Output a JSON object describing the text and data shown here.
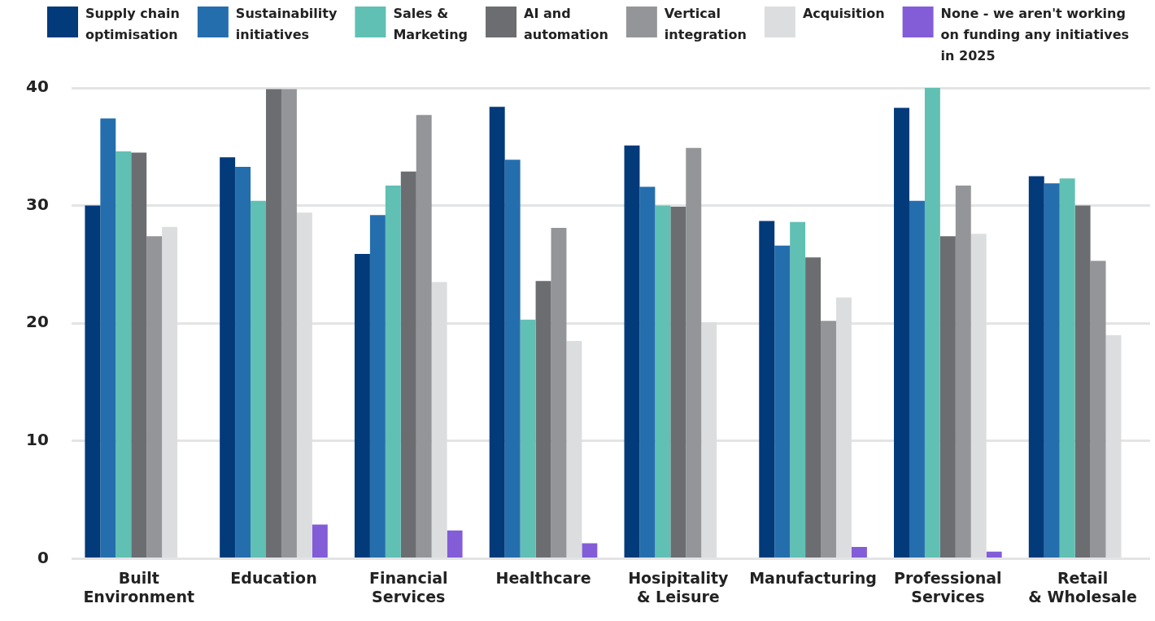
{
  "chart_data": {
    "type": "bar",
    "categories": [
      "Built Environment",
      "Education",
      "Financial Services",
      "Healthcare",
      "Hosipitality & Leisure",
      "Manufacturing",
      "Professional Services",
      "Retail & Wholesale"
    ],
    "series": [
      {
        "name": "Supply chain optimisation",
        "color": "#023a7a",
        "values": [
          30.0,
          34.1,
          25.9,
          38.4,
          35.1,
          28.7,
          38.3,
          32.5
        ]
      },
      {
        "name": "Sustainability initiatives",
        "color": "#256eae",
        "values": [
          37.4,
          33.3,
          29.2,
          33.9,
          31.6,
          26.6,
          30.4,
          31.9
        ]
      },
      {
        "name": "Sales & Marketing",
        "color": "#60c0b4",
        "values": [
          34.6,
          30.4,
          31.7,
          20.3,
          30.0,
          28.6,
          40.0,
          32.3
        ]
      },
      {
        "name": "AI and automation",
        "color": "#6c6d71",
        "values": [
          34.5,
          39.9,
          32.9,
          23.6,
          29.9,
          25.6,
          27.4,
          30.0
        ]
      },
      {
        "name": "Vertical integration",
        "color": "#949599",
        "values": [
          27.4,
          39.9,
          37.7,
          28.1,
          34.9,
          20.2,
          31.7,
          25.3
        ]
      },
      {
        "name": "Acquisition",
        "color": "#dcdddf",
        "values": [
          28.2,
          29.4,
          23.5,
          18.5,
          20.1,
          22.2,
          27.6,
          19.0
        ]
      },
      {
        "name": "None - we aren't working on funding any initiatives in 2025",
        "color": "#835cd8",
        "values": [
          null,
          2.9,
          2.4,
          1.3,
          null,
          1.0,
          0.6,
          null
        ]
      }
    ],
    "ylim": [
      0,
      40
    ],
    "yticks": [
      0,
      10,
      20,
      30,
      40
    ],
    "grid": "y",
    "legend": "top"
  }
}
